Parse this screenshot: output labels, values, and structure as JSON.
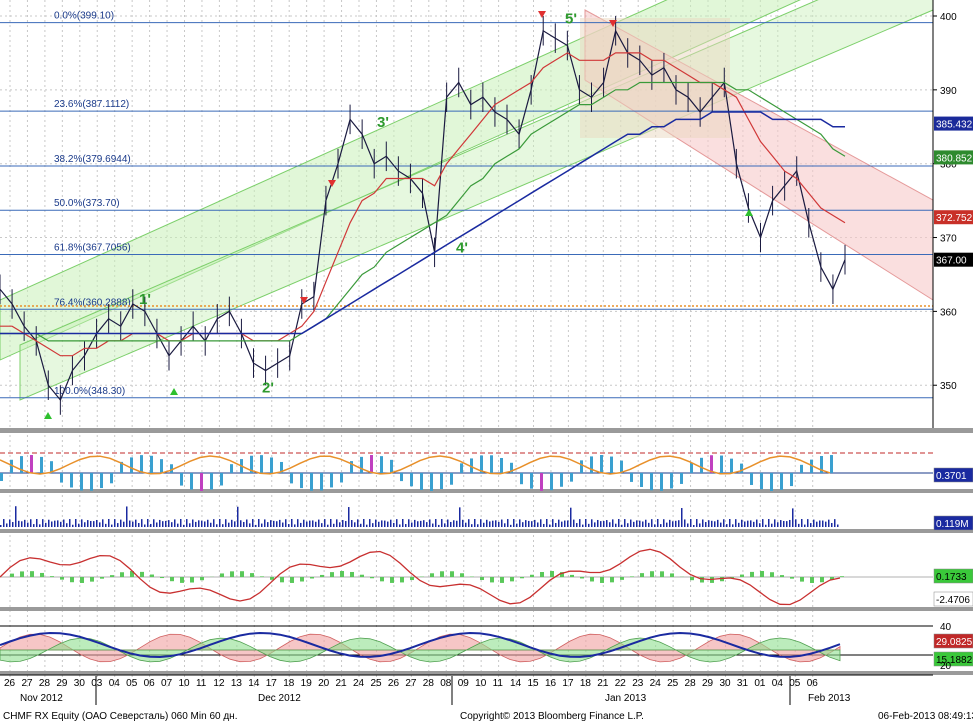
{
  "chart_data": {
    "type": "line",
    "ticker": "CHMF RX Equity (ОАО Северсталь) 060 Min 60 дн.",
    "copyright": "Copyright© 2013 Bloomberg Finance L.P.",
    "timestamp": "06-Feb-2013 08:49:13",
    "ylim": [
      346,
      402
    ],
    "y_ticks": [
      350,
      360,
      370,
      380,
      390,
      400
    ],
    "x_ticks": [
      "26",
      "27",
      "28",
      "29",
      "30",
      "03",
      "04",
      "05",
      "06",
      "07",
      "10",
      "11",
      "12",
      "13",
      "14",
      "17",
      "18",
      "19",
      "20",
      "21",
      "24",
      "25",
      "26",
      "27",
      "28",
      "08",
      "09",
      "10",
      "11",
      "14",
      "15",
      "16",
      "17",
      "18",
      "21",
      "22",
      "23",
      "24",
      "25",
      "28",
      "29",
      "30",
      "31",
      "01",
      "04",
      "05",
      "06"
    ],
    "month_labels": [
      "Nov 2012",
      "Dec 2012",
      "Jan 2013",
      "Feb 2013"
    ],
    "fib_levels": [
      {
        "label": "0.0%(399.10)",
        "value": 399.1
      },
      {
        "label": "23.6%(387.1112)",
        "value": 387.1112
      },
      {
        "label": "38.2%(379.6944)",
        "value": 379.6944
      },
      {
        "label": "50.0%(373.70)",
        "value": 373.7
      },
      {
        "label": "61.8%(367.7056)",
        "value": 367.7056
      },
      {
        "label": "76.4%(360.2888)",
        "value": 360.2888
      },
      {
        "label": "100.0%(348.30)",
        "value": 348.3
      }
    ],
    "wave_labels": [
      {
        "label": "1'",
        "x": 139,
        "y": 361
      },
      {
        "label": "2'",
        "x": 262,
        "y": 349
      },
      {
        "label": "3'",
        "x": 377,
        "y": 385
      },
      {
        "label": "4'",
        "x": 456,
        "y": 368
      },
      {
        "label": "5'",
        "x": 565,
        "y": 399
      }
    ],
    "price_tags": [
      {
        "text": "385.432",
        "value": 385.432,
        "color": "#1a2a9a"
      },
      {
        "text": "380.852",
        "value": 380.852,
        "color": "#2e8a2e"
      },
      {
        "text": "372.752",
        "value": 372.752,
        "color": "#c83028"
      },
      {
        "text": "367.00",
        "value": 367.0,
        "color": "#000000"
      }
    ],
    "series": [
      {
        "name": "price",
        "values": [
          363,
          361,
          358,
          356,
          350,
          348,
          352,
          354,
          357,
          359,
          358,
          361,
          360,
          357,
          354,
          356,
          358,
          356,
          359,
          360,
          357,
          353,
          352,
          353,
          354,
          361,
          362,
          375,
          380,
          386,
          384,
          380,
          381,
          379,
          378,
          376,
          368,
          389,
          391,
          388,
          389,
          387,
          386,
          384,
          390,
          398,
          397,
          396,
          390,
          389,
          391,
          398,
          395,
          394,
          392,
          393,
          390,
          389,
          387,
          389,
          391,
          380,
          374,
          370,
          375,
          377,
          379,
          372,
          366,
          363,
          367
        ]
      },
      {
        "name": "ma-red",
        "values": [
          358,
          358,
          357,
          356,
          355,
          354,
          354,
          355,
          355,
          356,
          356,
          357,
          357,
          357,
          356,
          356,
          357,
          357,
          357,
          357,
          357,
          356,
          356,
          356,
          357,
          358,
          360,
          364,
          368,
          372,
          375,
          376,
          378,
          378,
          378,
          378,
          377,
          380,
          382,
          384,
          386,
          388,
          389,
          390,
          391,
          393,
          394,
          395,
          394,
          394,
          394,
          395,
          395,
          395,
          394,
          394,
          393,
          392,
          391,
          391,
          390,
          389,
          386,
          383,
          381,
          379,
          378,
          376,
          374,
          373,
          372
        ]
      },
      {
        "name": "ma-green",
        "values": [
          357,
          357,
          357,
          357,
          356,
          356,
          356,
          356,
          356,
          356,
          356,
          356,
          356,
          356,
          356,
          356,
          356,
          356,
          356,
          356,
          356,
          356,
          356,
          356,
          356,
          357,
          358,
          359,
          361,
          363,
          365,
          366,
          368,
          369,
          370,
          371,
          372,
          373,
          375,
          377,
          378,
          380,
          381,
          382,
          384,
          385,
          386,
          387,
          388,
          388,
          389,
          390,
          390,
          391,
          391,
          391,
          391,
          391,
          391,
          391,
          391,
          390,
          390,
          389,
          388,
          387,
          386,
          385,
          384,
          382,
          381
        ]
      },
      {
        "name": "ma-blue",
        "values": [
          357,
          357,
          357,
          357,
          357,
          357,
          357,
          357,
          357,
          357,
          357,
          357,
          357,
          357,
          357,
          357,
          357,
          357,
          357,
          357,
          357,
          357,
          357,
          357,
          357,
          357,
          358,
          359,
          360,
          361,
          362,
          363,
          364,
          365,
          366,
          367,
          368,
          369,
          370,
          371,
          372,
          373,
          374,
          375,
          376,
          377,
          378,
          379,
          380,
          381,
          382,
          383,
          384,
          384,
          385,
          385,
          386,
          386,
          386,
          387,
          387,
          387,
          387,
          387,
          386,
          386,
          386,
          386,
          386,
          385,
          385
        ]
      }
    ],
    "sub_panels": [
      {
        "name": "oscillator",
        "tags": [
          "0.3701"
        ]
      },
      {
        "name": "volume",
        "tags": [
          "0.119M"
        ]
      },
      {
        "name": "macd",
        "tags": [
          "0.1733",
          "-2.4706"
        ]
      },
      {
        "name": "dmi",
        "tags": [
          "29.0825",
          "15.1882"
        ],
        "ticks": [
          "40",
          "20"
        ]
      }
    ]
  }
}
